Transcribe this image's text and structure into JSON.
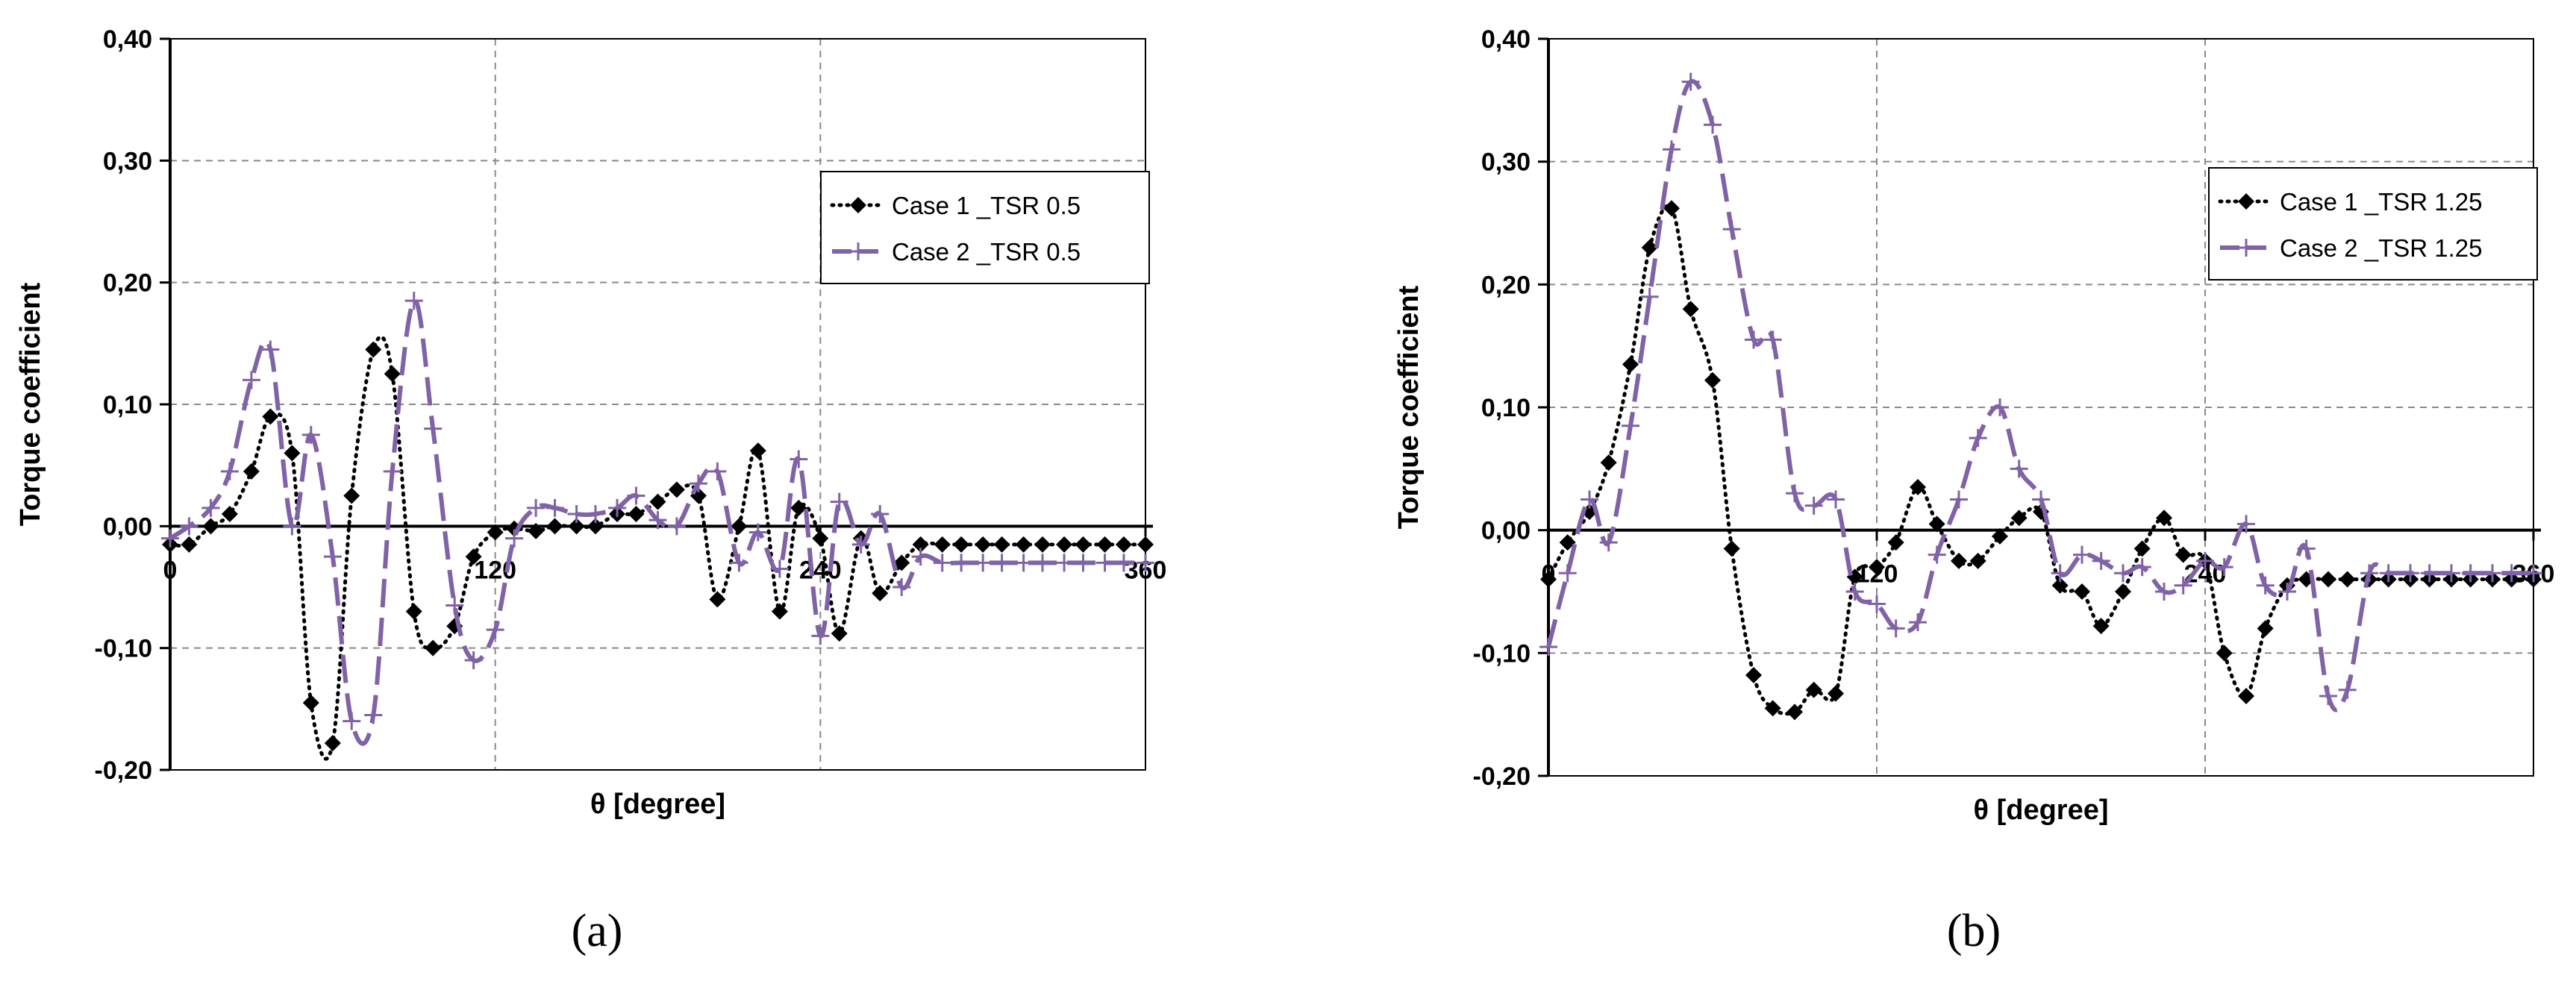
{
  "colors": {
    "case1": "#000000",
    "case2": "#8063a6",
    "grid": "#8a8a8a"
  },
  "chart_data": [
    {
      "id": "a",
      "type": "line",
      "caption": "(a)",
      "xlabel": "θ [degree]",
      "ylabel": "Torque coefficient",
      "xlim": [
        0,
        360
      ],
      "ylim": [
        -0.2,
        0.4
      ],
      "xticks": [
        0,
        120,
        240,
        360
      ],
      "xtick_labels": [
        "0",
        "120",
        "240",
        "360"
      ],
      "yticks": [
        -0.2,
        -0.1,
        0,
        0.1,
        0.2,
        0.3,
        0.4
      ],
      "ytick_labels": [
        "-0,20",
        "-0,10",
        "0,00",
        "0,10",
        "0,20",
        "0,30",
        "0,40"
      ],
      "grid": true,
      "legend_position": "upper-right",
      "series": [
        {
          "name": "Case 1 _TSR 0.5",
          "style": "dotted",
          "marker": "diamond",
          "x": [
            0,
            7,
            15,
            22,
            30,
            37,
            45,
            52,
            60,
            67,
            75,
            82,
            90,
            97,
            105,
            112,
            120,
            127,
            135,
            142,
            150,
            157,
            165,
            172,
            180,
            187,
            195,
            202,
            210,
            217,
            225,
            232,
            240,
            247,
            255,
            262,
            270,
            277,
            285,
            292,
            300,
            307,
            315,
            322,
            330,
            337,
            345,
            352,
            360
          ],
          "y": [
            -0.015,
            -0.015,
            0.0,
            0.01,
            0.045,
            0.09,
            0.06,
            -0.145,
            -0.178,
            0.025,
            0.145,
            0.125,
            -0.07,
            -0.1,
            -0.082,
            -0.025,
            -0.005,
            -0.002,
            -0.004,
            0.0,
            0.0,
            0.0,
            0.01,
            0.01,
            0.02,
            0.03,
            0.025,
            -0.06,
            0.0,
            0.062,
            -0.07,
            0.015,
            -0.01,
            -0.088,
            -0.01,
            -0.055,
            -0.03,
            -0.015,
            -0.015,
            -0.015,
            -0.015,
            -0.015,
            -0.015,
            -0.015,
            -0.015,
            -0.015,
            -0.015,
            -0.015,
            -0.015
          ]
        },
        {
          "name": "Case 2 _TSR 0.5",
          "style": "dashed",
          "marker": "plus",
          "x": [
            0,
            7,
            15,
            22,
            30,
            37,
            45,
            52,
            60,
            67,
            75,
            82,
            90,
            97,
            105,
            112,
            120,
            127,
            135,
            142,
            150,
            157,
            165,
            172,
            180,
            187,
            195,
            202,
            210,
            217,
            225,
            232,
            240,
            247,
            255,
            262,
            270,
            277,
            285,
            292,
            300,
            307,
            315,
            322,
            330,
            337,
            345,
            352,
            360
          ],
          "y": [
            -0.01,
            0.0,
            0.015,
            0.045,
            0.12,
            0.145,
            0.0,
            0.075,
            -0.025,
            -0.16,
            -0.155,
            0.045,
            0.185,
            0.08,
            -0.065,
            -0.11,
            -0.085,
            -0.01,
            0.015,
            0.015,
            0.01,
            0.01,
            0.015,
            0.025,
            0.005,
            0.0,
            0.035,
            0.045,
            -0.03,
            -0.005,
            -0.035,
            0.055,
            -0.09,
            0.02,
            -0.015,
            0.01,
            -0.05,
            -0.025,
            -0.03,
            -0.03,
            -0.03,
            -0.03,
            -0.03,
            -0.03,
            -0.03,
            -0.03,
            -0.03,
            -0.03,
            -0.03
          ]
        }
      ]
    },
    {
      "id": "b",
      "type": "line",
      "caption": "(b)",
      "xlabel": "θ [degree]",
      "ylabel": "Torque coefficient",
      "xlim": [
        0,
        360
      ],
      "ylim": [
        -0.2,
        0.4
      ],
      "xticks": [
        0,
        120,
        240,
        360
      ],
      "xtick_labels": [
        "0",
        "120",
        "240",
        "360"
      ],
      "yticks": [
        -0.2,
        -0.1,
        0,
        0.1,
        0.2,
        0.3,
        0.4
      ],
      "ytick_labels": [
        "-0,20",
        "-0,10",
        "0,00",
        "0,10",
        "0,20",
        "0,30",
        "0,40"
      ],
      "grid": true,
      "legend_position": "upper-right",
      "series": [
        {
          "name": "Case 1 _TSR 1.25",
          "style": "dotted",
          "marker": "diamond",
          "x": [
            0,
            7,
            15,
            22,
            30,
            37,
            45,
            52,
            60,
            67,
            75,
            82,
            90,
            97,
            105,
            112,
            120,
            127,
            135,
            142,
            150,
            157,
            165,
            172,
            180,
            187,
            195,
            202,
            210,
            217,
            225,
            232,
            240,
            247,
            255,
            262,
            270,
            277,
            285,
            292,
            300,
            307,
            315,
            322,
            330,
            337,
            345,
            352,
            360
          ],
          "y": [
            -0.04,
            -0.01,
            0.015,
            0.055,
            0.135,
            0.23,
            0.262,
            0.18,
            0.122,
            -0.015,
            -0.118,
            -0.145,
            -0.148,
            -0.13,
            -0.133,
            -0.038,
            -0.03,
            -0.01,
            0.035,
            0.005,
            -0.025,
            -0.025,
            -0.005,
            0.01,
            0.015,
            -0.045,
            -0.05,
            -0.078,
            -0.05,
            -0.015,
            0.01,
            -0.02,
            -0.025,
            -0.1,
            -0.135,
            -0.08,
            -0.045,
            -0.04,
            -0.04,
            -0.04,
            -0.04,
            -0.04,
            -0.04,
            -0.04,
            -0.04,
            -0.04,
            -0.04,
            -0.04,
            -0.04
          ]
        },
        {
          "name": "Case 2 _TSR 1.25",
          "style": "dashed",
          "marker": "plus",
          "x": [
            0,
            7,
            15,
            22,
            30,
            37,
            45,
            52,
            60,
            67,
            75,
            82,
            90,
            97,
            105,
            112,
            120,
            127,
            135,
            142,
            150,
            157,
            165,
            172,
            180,
            187,
            195,
            202,
            210,
            217,
            225,
            232,
            240,
            247,
            255,
            262,
            270,
            277,
            285,
            292,
            300,
            307,
            315,
            322,
            330,
            337,
            345,
            352,
            360
          ],
          "y": [
            -0.095,
            -0.035,
            0.025,
            -0.01,
            0.085,
            0.19,
            0.31,
            0.365,
            0.33,
            0.245,
            0.155,
            0.155,
            0.03,
            0.02,
            0.025,
            -0.05,
            -0.06,
            -0.08,
            -0.075,
            -0.02,
            0.025,
            0.075,
            0.1,
            0.05,
            0.025,
            -0.035,
            -0.02,
            -0.025,
            -0.035,
            -0.03,
            -0.05,
            -0.045,
            -0.025,
            -0.03,
            0.005,
            -0.045,
            -0.05,
            -0.015,
            -0.135,
            -0.13,
            -0.035,
            -0.035,
            -0.035,
            -0.035,
            -0.035,
            -0.035,
            -0.035,
            -0.035,
            -0.035
          ]
        }
      ]
    }
  ]
}
